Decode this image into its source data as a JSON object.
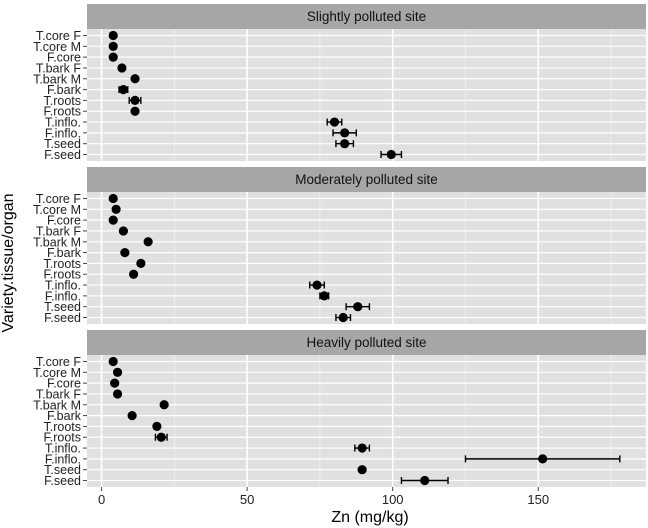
{
  "chart_data": {
    "type": "scatter",
    "subtype": "dot-with-error-bars-faceted",
    "xlabel": "Zn (mg/kg)",
    "ylabel": "Variety.tissue/organ",
    "xlim": [
      -5,
      187
    ],
    "x_ticks": [
      0,
      50,
      100,
      150
    ],
    "grid": true,
    "categories": [
      "T.core F",
      "T.core M",
      "F.core",
      "T.bark F",
      "T.bark M",
      "F.bark",
      "T.roots",
      "F.roots",
      "T.inflo.",
      "F.inflo.",
      "T.seed",
      "F.seed"
    ],
    "panels": [
      {
        "title": "Slightly polluted site",
        "values": [
          4,
          4,
          4,
          7,
          11.5,
          7.5,
          11.5,
          11.5,
          80,
          83.5,
          83.5,
          99.5
        ],
        "errors": [
          0,
          0,
          0,
          0,
          0,
          1.5,
          2,
          0,
          2.5,
          4,
          3,
          3.5
        ]
      },
      {
        "title": "Moderately polluted site",
        "values": [
          4,
          5,
          4,
          7.5,
          16,
          8,
          13.5,
          11,
          74,
          76.5,
          88,
          83
        ],
        "errors": [
          0,
          0,
          0,
          0,
          0,
          0,
          0,
          0,
          2.5,
          1.5,
          4,
          2.5
        ]
      },
      {
        "title": "Heavily polluted site",
        "values": [
          4,
          5.5,
          4.5,
          5.5,
          21.5,
          10.5,
          19,
          20.5,
          89.5,
          151.5,
          89.5,
          111
        ],
        "errors": [
          0,
          0,
          0,
          0,
          0,
          0,
          0,
          2,
          2.5,
          26.5,
          0,
          8
        ]
      }
    ]
  }
}
